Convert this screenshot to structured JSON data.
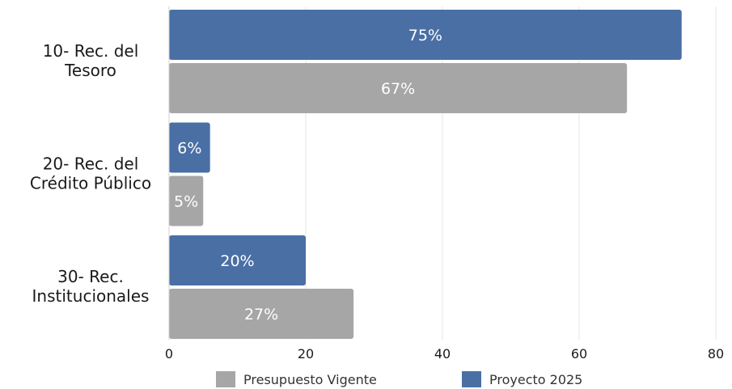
{
  "chart_data": {
    "type": "bar",
    "orientation": "horizontal",
    "categories": [
      [
        "10- Rec. del",
        "Tesoro"
      ],
      [
        "20- Rec. del",
        "Crédito Público"
      ],
      [
        "30- Rec.",
        "Institucionales"
      ]
    ],
    "series": [
      {
        "name": "Proyecto 2025",
        "values": [
          75,
          6,
          20
        ],
        "labels": [
          "75%",
          "6%",
          "20%"
        ],
        "color": "#4a6fa5"
      },
      {
        "name": "Presupuesto Vigente",
        "values": [
          67,
          5,
          27
        ],
        "labels": [
          "67%",
          "5%",
          "27%"
        ],
        "color": "#a6a6a6"
      }
    ],
    "xlim": [
      0,
      80
    ],
    "xticks": [
      0,
      20,
      40,
      60,
      80
    ],
    "grid": "vertical",
    "legend": {
      "position": "bottom",
      "order": [
        "Presupuesto Vigente",
        "Proyecto 2025"
      ]
    }
  }
}
